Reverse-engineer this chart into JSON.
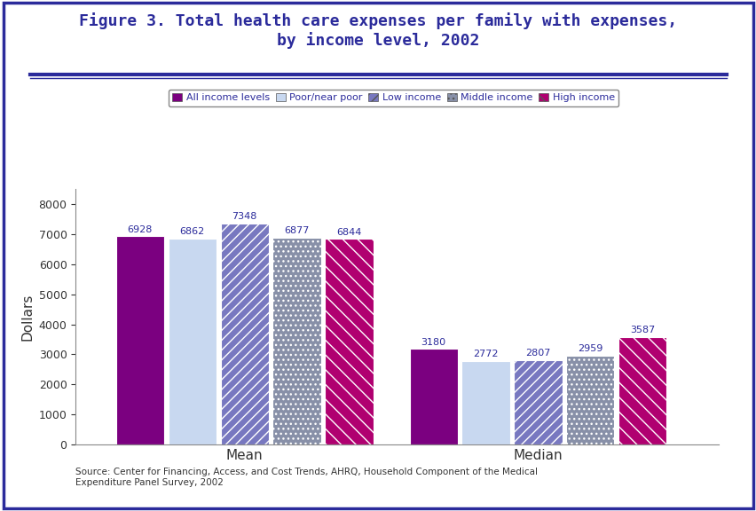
{
  "title": "Figure 3. Total health care expenses per family with expenses,\nby income level, 2002",
  "title_color": "#2B2B9B",
  "ylabel": "Dollars",
  "ylabel_color": "#333333",
  "categories": [
    "Mean",
    "Median"
  ],
  "series_labels": [
    "All income levels",
    "Poor/near poor",
    "Low income",
    "Middle income",
    "High income"
  ],
  "mean_values": [
    6928,
    6862,
    7348,
    6877,
    6844
  ],
  "median_values": [
    3180,
    2772,
    2807,
    2959,
    3587
  ],
  "bar_colors": [
    "#7B0080",
    "#C8D8F0",
    "#7878C0",
    "#8890A8",
    "#B00070"
  ],
  "bar_hatches": [
    "",
    "",
    "///",
    "...",
    "\\\\"
  ],
  "ylim": [
    0,
    8500
  ],
  "yticks": [
    0,
    1000,
    2000,
    3000,
    4000,
    5000,
    6000,
    7000,
    8000
  ],
  "source_text": "Source: Center for Financing, Access, and Cost Trends, AHRQ, Household Component of the Medical\nExpenditure Panel Survey, 2002",
  "background_color": "#FFFFFF",
  "figure_background": "#FFFFFF",
  "label_color": "#2B2B9B",
  "tick_color": "#333333",
  "bar_label_fontsize": 8,
  "legend_fontsize": 8,
  "title_fontsize": 13
}
